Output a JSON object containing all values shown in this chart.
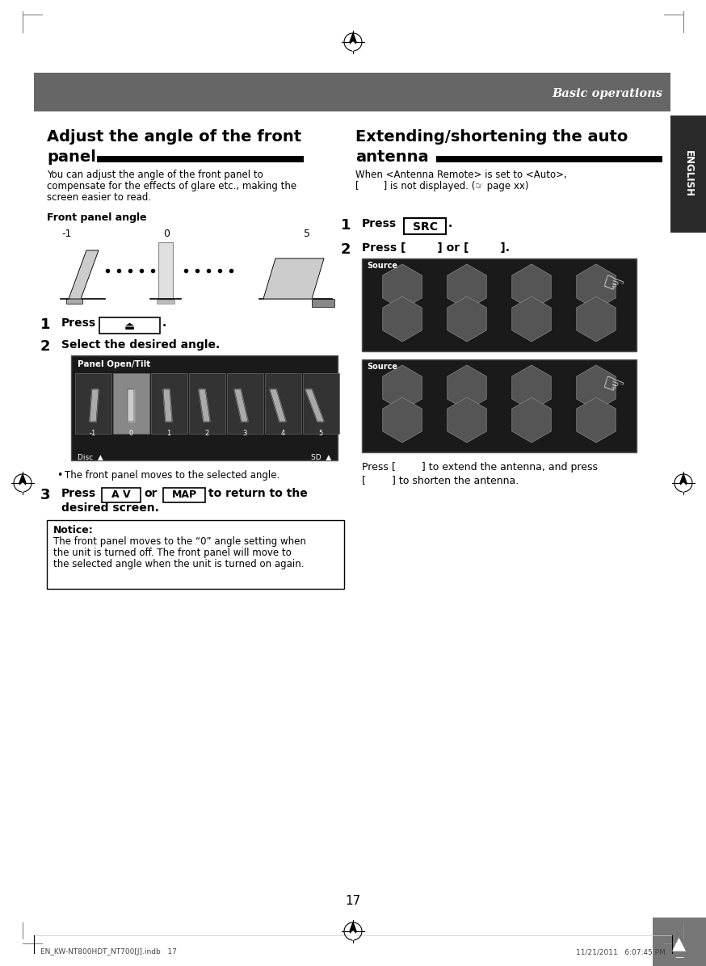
{
  "page_bg": "#ffffff",
  "header_bg": "#666666",
  "header_text": "Basic operations",
  "header_text_color": "#ffffff",
  "english_tab_bg": "#2a2a2a",
  "english_tab_text": "ENGLISH",
  "english_tab_color": "#ffffff",
  "left_title_line1": "Adjust the angle of the front",
  "left_title_line2": "panel",
  "right_title_line1": "Extending/shortening the auto",
  "right_title_line2": "antenna",
  "left_desc_line1": "You can adjust the angle of the front panel to",
  "left_desc_line2": "compensate for the effects of glare etc., making the",
  "left_desc_line3": "screen easier to read.",
  "front_panel_angle_label": "Front panel angle",
  "angle_labels": [
    "-1",
    "0",
    "5"
  ],
  "step2_left": "Select the desired angle.",
  "bullet_text": "The front panel moves to the selected angle.",
  "notice_title": "Notice:",
  "notice_body_line1": "The front panel moves to the “0” angle setting when",
  "notice_body_line2": "the unit is turned off. The front panel will move to",
  "notice_body_line3": "the selected angle when the unit is turned on again.",
  "right_desc_line1": "When <Antenna Remote> is set to <Auto>,",
  "right_desc_line2": "[        ] is not displayed. (☞ page xx)",
  "step1_right_btn": "SRC",
  "step2_right": "Press [        ] or [        ].",
  "press_line1": "Press [        ] to extend the antenna, and press",
  "press_line2": "[        ] to shorten the antenna.",
  "page_number": "17",
  "footer_left": "EN_KW-NT800HDT_NT700[J].indb   17",
  "footer_right": "11/21/2011   6:07:45 PM"
}
